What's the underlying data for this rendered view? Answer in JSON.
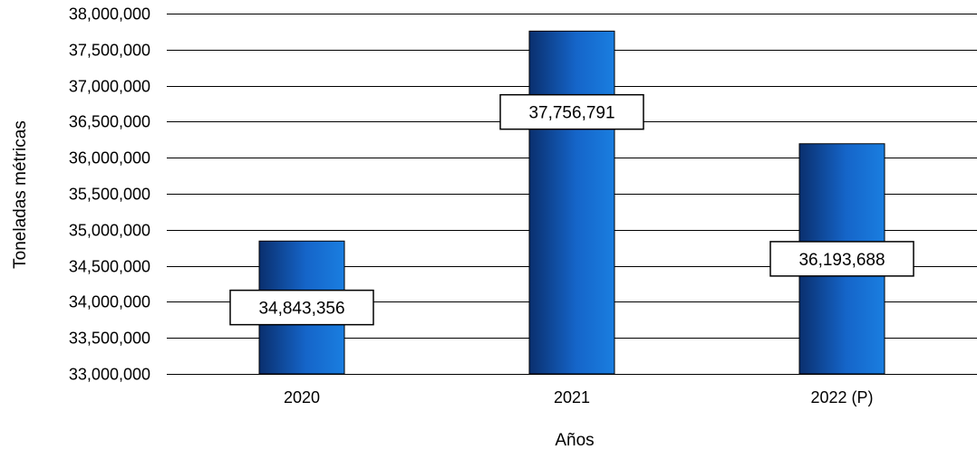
{
  "chart_data": {
    "type": "bar",
    "categories": [
      "2020",
      "2021",
      "2022 (P)"
    ],
    "values": [
      34843356,
      37756791,
      36193688
    ],
    "data_labels": [
      "34,843,356",
      "37,756,791",
      "36,193,688"
    ],
    "ytick_labels": [
      "33,000,000",
      "33,500,000",
      "34,000,000",
      "34,500,000",
      "35,000,000",
      "35,500,000",
      "36,000,000",
      "36,500,000",
      "37,000,000",
      "37,500,000",
      "38,000,000"
    ],
    "yticks": [
      33000000,
      33500000,
      34000000,
      34500000,
      35000000,
      35500000,
      36000000,
      36500000,
      37000000,
      37500000,
      38000000
    ],
    "xlabel": "Años",
    "ylabel": "Toneladas métricas",
    "ylim": [
      33000000,
      38000000
    ],
    "grid": true,
    "colors": {
      "bar_dark": "#0a2f6e",
      "bar_light": "#1a7ee0",
      "grid": "#000000"
    }
  }
}
